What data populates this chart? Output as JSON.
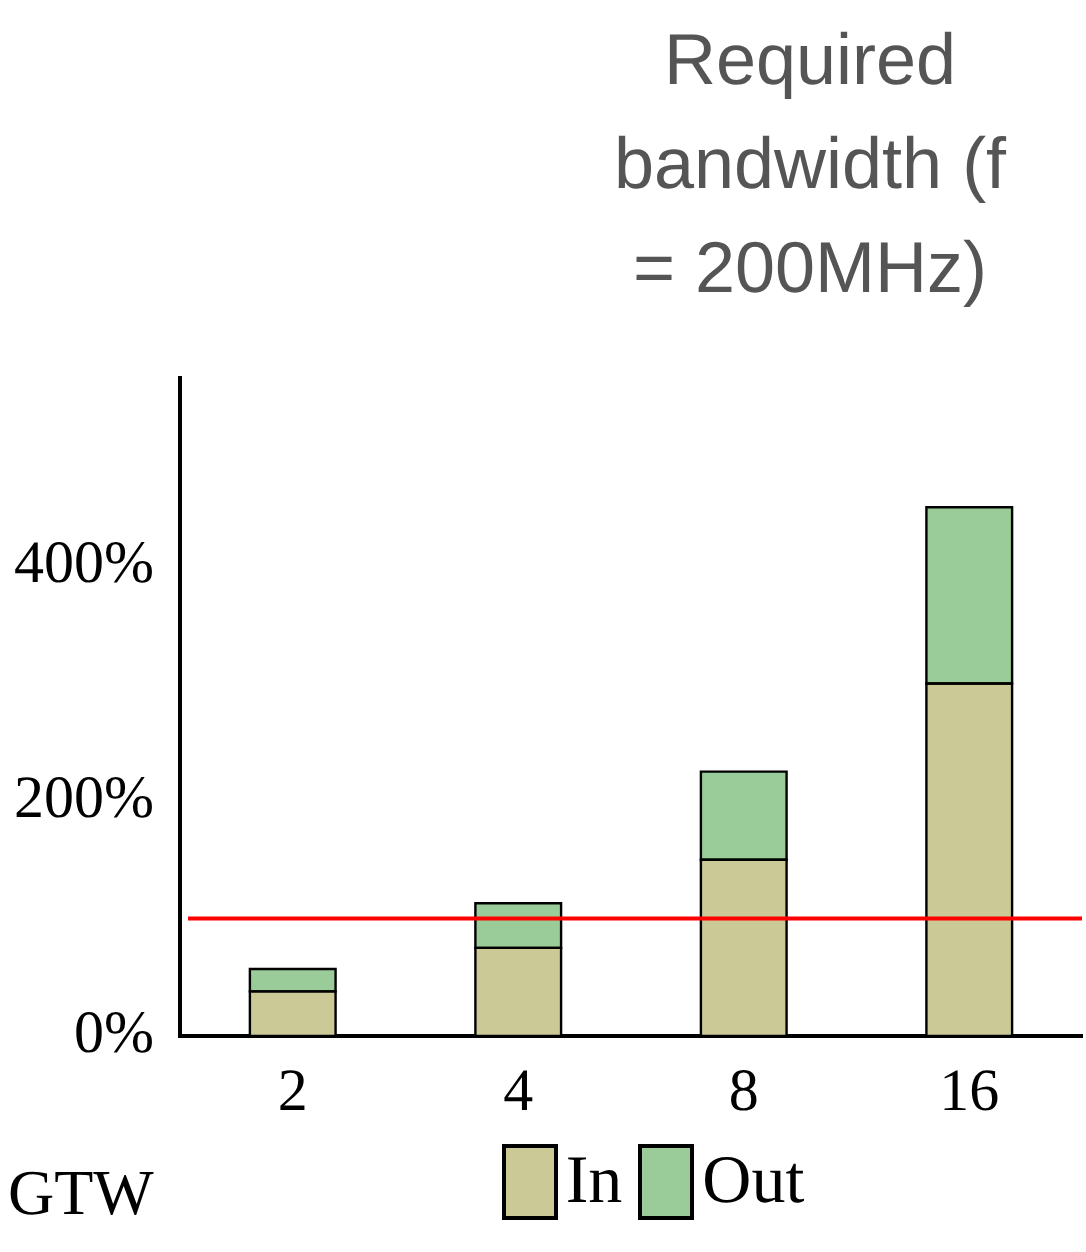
{
  "chart_data": {
    "type": "bar",
    "title": "Required bandwidth (f = 200MHz)",
    "categories": [
      "2",
      "4",
      "8",
      "16"
    ],
    "series": [
      {
        "name": "In",
        "color": "#cbc995",
        "values": [
          38,
          75,
          150,
          300
        ]
      },
      {
        "name": "Out",
        "color": "#99cc99",
        "values": [
          19,
          38,
          75,
          150
        ]
      }
    ],
    "stacked": true,
    "ylim": [
      0,
      560
    ],
    "yticks": [
      {
        "value": 0,
        "label": "0%"
      },
      {
        "value": 100,
        "label": null
      },
      {
        "value": 200,
        "label": "200%"
      },
      {
        "value": 400,
        "label": "400%"
      }
    ],
    "ref_lines": [
      {
        "axis": "y",
        "value": 100,
        "color": "#ff0000"
      }
    ],
    "annotations": [
      "GTW"
    ],
    "grid": false,
    "legend": "bottom"
  }
}
